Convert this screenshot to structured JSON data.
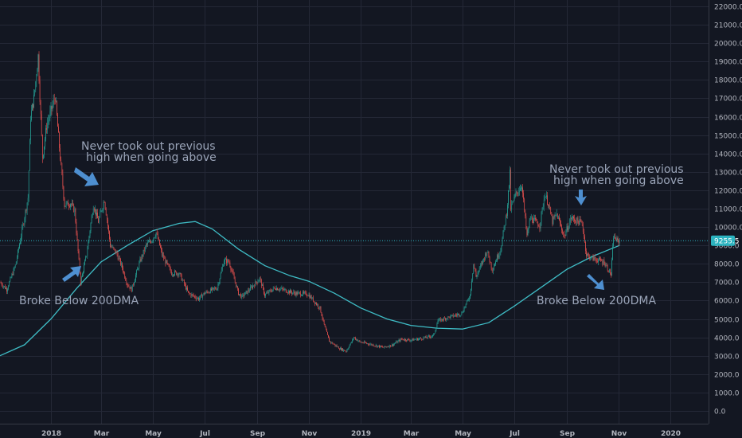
{
  "chart_data": {
    "type": "candlestick",
    "y_ticks": [
      "22000.0",
      "21000.0",
      "20000.0",
      "19000.0",
      "18000.0",
      "17000.0",
      "16000.0",
      "15000.0",
      "14000.0",
      "13000.0",
      "12000.0",
      "11000.0",
      "10000.0",
      "9000.0",
      "8000.0",
      "7000.0",
      "6000.0",
      "5000.0",
      "4000.0",
      "3000.0",
      "2000.0",
      "1000.0",
      "0.0"
    ],
    "ylim": [
      -500,
      22000
    ],
    "x_ticks": [
      {
        "label": "2018",
        "date": "2018-01-01"
      },
      {
        "label": "Mar",
        "date": "2018-03-01"
      },
      {
        "label": "May",
        "date": "2018-05-01"
      },
      {
        "label": "Jul",
        "date": "2018-07-01"
      },
      {
        "label": "Sep",
        "date": "2018-09-01"
      },
      {
        "label": "Nov",
        "date": "2018-11-01"
      },
      {
        "label": "2019",
        "date": "2019-01-01"
      },
      {
        "label": "Mar",
        "date": "2019-03-01"
      },
      {
        "label": "May",
        "date": "2019-05-01"
      },
      {
        "label": "Jul",
        "date": "2019-07-01"
      },
      {
        "label": "Sep",
        "date": "2019-09-01"
      },
      {
        "label": "Nov",
        "date": "2019-11-01"
      },
      {
        "label": "2020",
        "date": "2020-01-01"
      }
    ],
    "xlim": [
      "2017-11-02",
      "2020-02-15"
    ],
    "current_price": "9255.5",
    "price_close": [
      [
        "2017-11-02",
        7000
      ],
      [
        "2017-11-10",
        6600
      ],
      [
        "2017-11-20",
        7900
      ],
      [
        "2017-11-28",
        9800
      ],
      [
        "2017-12-05",
        11600
      ],
      [
        "2017-12-08",
        16000
      ],
      [
        "2017-12-12",
        17000
      ],
      [
        "2017-12-17",
        19300
      ],
      [
        "2017-12-22",
        13800
      ],
      [
        "2017-12-27",
        15500
      ],
      [
        "2018-01-06",
        17100
      ],
      [
        "2018-01-12",
        13800
      ],
      [
        "2018-01-17",
        11200
      ],
      [
        "2018-01-24",
        11300
      ],
      [
        "2018-01-29",
        10900
      ],
      [
        "2018-02-05",
        7000
      ],
      [
        "2018-02-12",
        8500
      ],
      [
        "2018-02-20",
        11200
      ],
      [
        "2018-02-26",
        10300
      ],
      [
        "2018-03-05",
        11500
      ],
      [
        "2018-03-12",
        9000
      ],
      [
        "2018-03-19",
        8600
      ],
      [
        "2018-03-26",
        7800
      ],
      [
        "2018-04-01",
        6900
      ],
      [
        "2018-04-06",
        6600
      ],
      [
        "2018-04-15",
        8000
      ],
      [
        "2018-04-23",
        9000
      ],
      [
        "2018-04-30",
        9300
      ],
      [
        "2018-05-05",
        9700
      ],
      [
        "2018-05-12",
        8500
      ],
      [
        "2018-05-23",
        7500
      ],
      [
        "2018-06-01",
        7500
      ],
      [
        "2018-06-12",
        6400
      ],
      [
        "2018-06-24",
        6100
      ],
      [
        "2018-07-01",
        6400
      ],
      [
        "2018-07-16",
        6700
      ],
      [
        "2018-07-24",
        8200
      ],
      [
        "2018-07-30",
        8100
      ],
      [
        "2018-08-10",
        6400
      ],
      [
        "2018-08-14",
        6200
      ],
      [
        "2018-08-25",
        6700
      ],
      [
        "2018-09-04",
        7200
      ],
      [
        "2018-09-10",
        6300
      ],
      [
        "2018-09-22",
        6700
      ],
      [
        "2018-10-01",
        6600
      ],
      [
        "2018-10-15",
        6400
      ],
      [
        "2018-10-31",
        6350
      ],
      [
        "2018-11-14",
        5600
      ],
      [
        "2018-11-20",
        4500
      ],
      [
        "2018-11-25",
        3800
      ],
      [
        "2018-12-07",
        3400
      ],
      [
        "2018-12-15",
        3250
      ],
      [
        "2018-12-24",
        4000
      ],
      [
        "2018-12-31",
        3750
      ],
      [
        "2019-01-10",
        3650
      ],
      [
        "2019-01-28",
        3450
      ],
      [
        "2019-02-08",
        3600
      ],
      [
        "2019-02-18",
        3900
      ],
      [
        "2019-03-01",
        3850
      ],
      [
        "2019-03-15",
        3950
      ],
      [
        "2019-03-28",
        4100
      ],
      [
        "2019-04-02",
        4900
      ],
      [
        "2019-04-15",
        5100
      ],
      [
        "2019-04-30",
        5300
      ],
      [
        "2019-05-10",
        6300
      ],
      [
        "2019-05-14",
        8000
      ],
      [
        "2019-05-17",
        7300
      ],
      [
        "2019-05-30",
        8700
      ],
      [
        "2019-06-05",
        7700
      ],
      [
        "2019-06-15",
        8800
      ],
      [
        "2019-06-22",
        10800
      ],
      [
        "2019-06-26",
        12900
      ],
      [
        "2019-06-27",
        11000
      ],
      [
        "2019-07-03",
        11800
      ],
      [
        "2019-07-10",
        12300
      ],
      [
        "2019-07-16",
        9500
      ],
      [
        "2019-07-20",
        10500
      ],
      [
        "2019-07-31",
        10100
      ],
      [
        "2019-08-06",
        11800
      ],
      [
        "2019-08-10",
        11300
      ],
      [
        "2019-08-15",
        10300
      ],
      [
        "2019-08-20",
        10700
      ],
      [
        "2019-08-29",
        9500
      ],
      [
        "2019-09-06",
        10500
      ],
      [
        "2019-09-19",
        10200
      ],
      [
        "2019-09-24",
        8500
      ],
      [
        "2019-10-01",
        8300
      ],
      [
        "2019-10-08",
        8200
      ],
      [
        "2019-10-15",
        8100
      ],
      [
        "2019-10-23",
        7400
      ],
      [
        "2019-10-26",
        9500
      ],
      [
        "2019-10-31",
        9200
      ],
      [
        "2019-11-02",
        9255
      ]
    ],
    "moving_average_200": [
      [
        "2017-11-02",
        3000
      ],
      [
        "2017-12-01",
        3600
      ],
      [
        "2018-01-01",
        5000
      ],
      [
        "2018-02-01",
        6700
      ],
      [
        "2018-03-01",
        8100
      ],
      [
        "2018-04-01",
        9000
      ],
      [
        "2018-05-01",
        9800
      ],
      [
        "2018-06-01",
        10200
      ],
      [
        "2018-06-20",
        10300
      ],
      [
        "2018-07-10",
        9900
      ],
      [
        "2018-08-10",
        8800
      ],
      [
        "2018-09-10",
        7900
      ],
      [
        "2018-10-10",
        7350
      ],
      [
        "2018-11-01",
        7050
      ],
      [
        "2018-12-01",
        6400
      ],
      [
        "2019-01-01",
        5600
      ],
      [
        "2019-02-01",
        5000
      ],
      [
        "2019-03-01",
        4650
      ],
      [
        "2019-04-01",
        4500
      ],
      [
        "2019-05-01",
        4450
      ],
      [
        "2019-06-01",
        4800
      ],
      [
        "2019-07-01",
        5700
      ],
      [
        "2019-08-01",
        6700
      ],
      [
        "2019-09-01",
        7700
      ],
      [
        "2019-10-01",
        8400
      ],
      [
        "2019-11-02",
        9000
      ]
    ],
    "colors": {
      "background": "#131722",
      "grid": "#242836",
      "up": "#26a69a",
      "down": "#ef5350",
      "ma_line": "#3fbdc6",
      "price_line": "#2cb3bf",
      "arrow": "#4e8fd0",
      "annotation_text": "#9aa4b8"
    },
    "annotations": [
      {
        "lines": [
          "Never took out previous",
          "high when going above"
        ]
      },
      {
        "lines": [
          "Broke Below 200DMA"
        ]
      },
      {
        "lines": [
          "Never took out previous",
          "high when going above"
        ]
      },
      {
        "lines": [
          "Broke Below 200DMA"
        ]
      }
    ]
  }
}
